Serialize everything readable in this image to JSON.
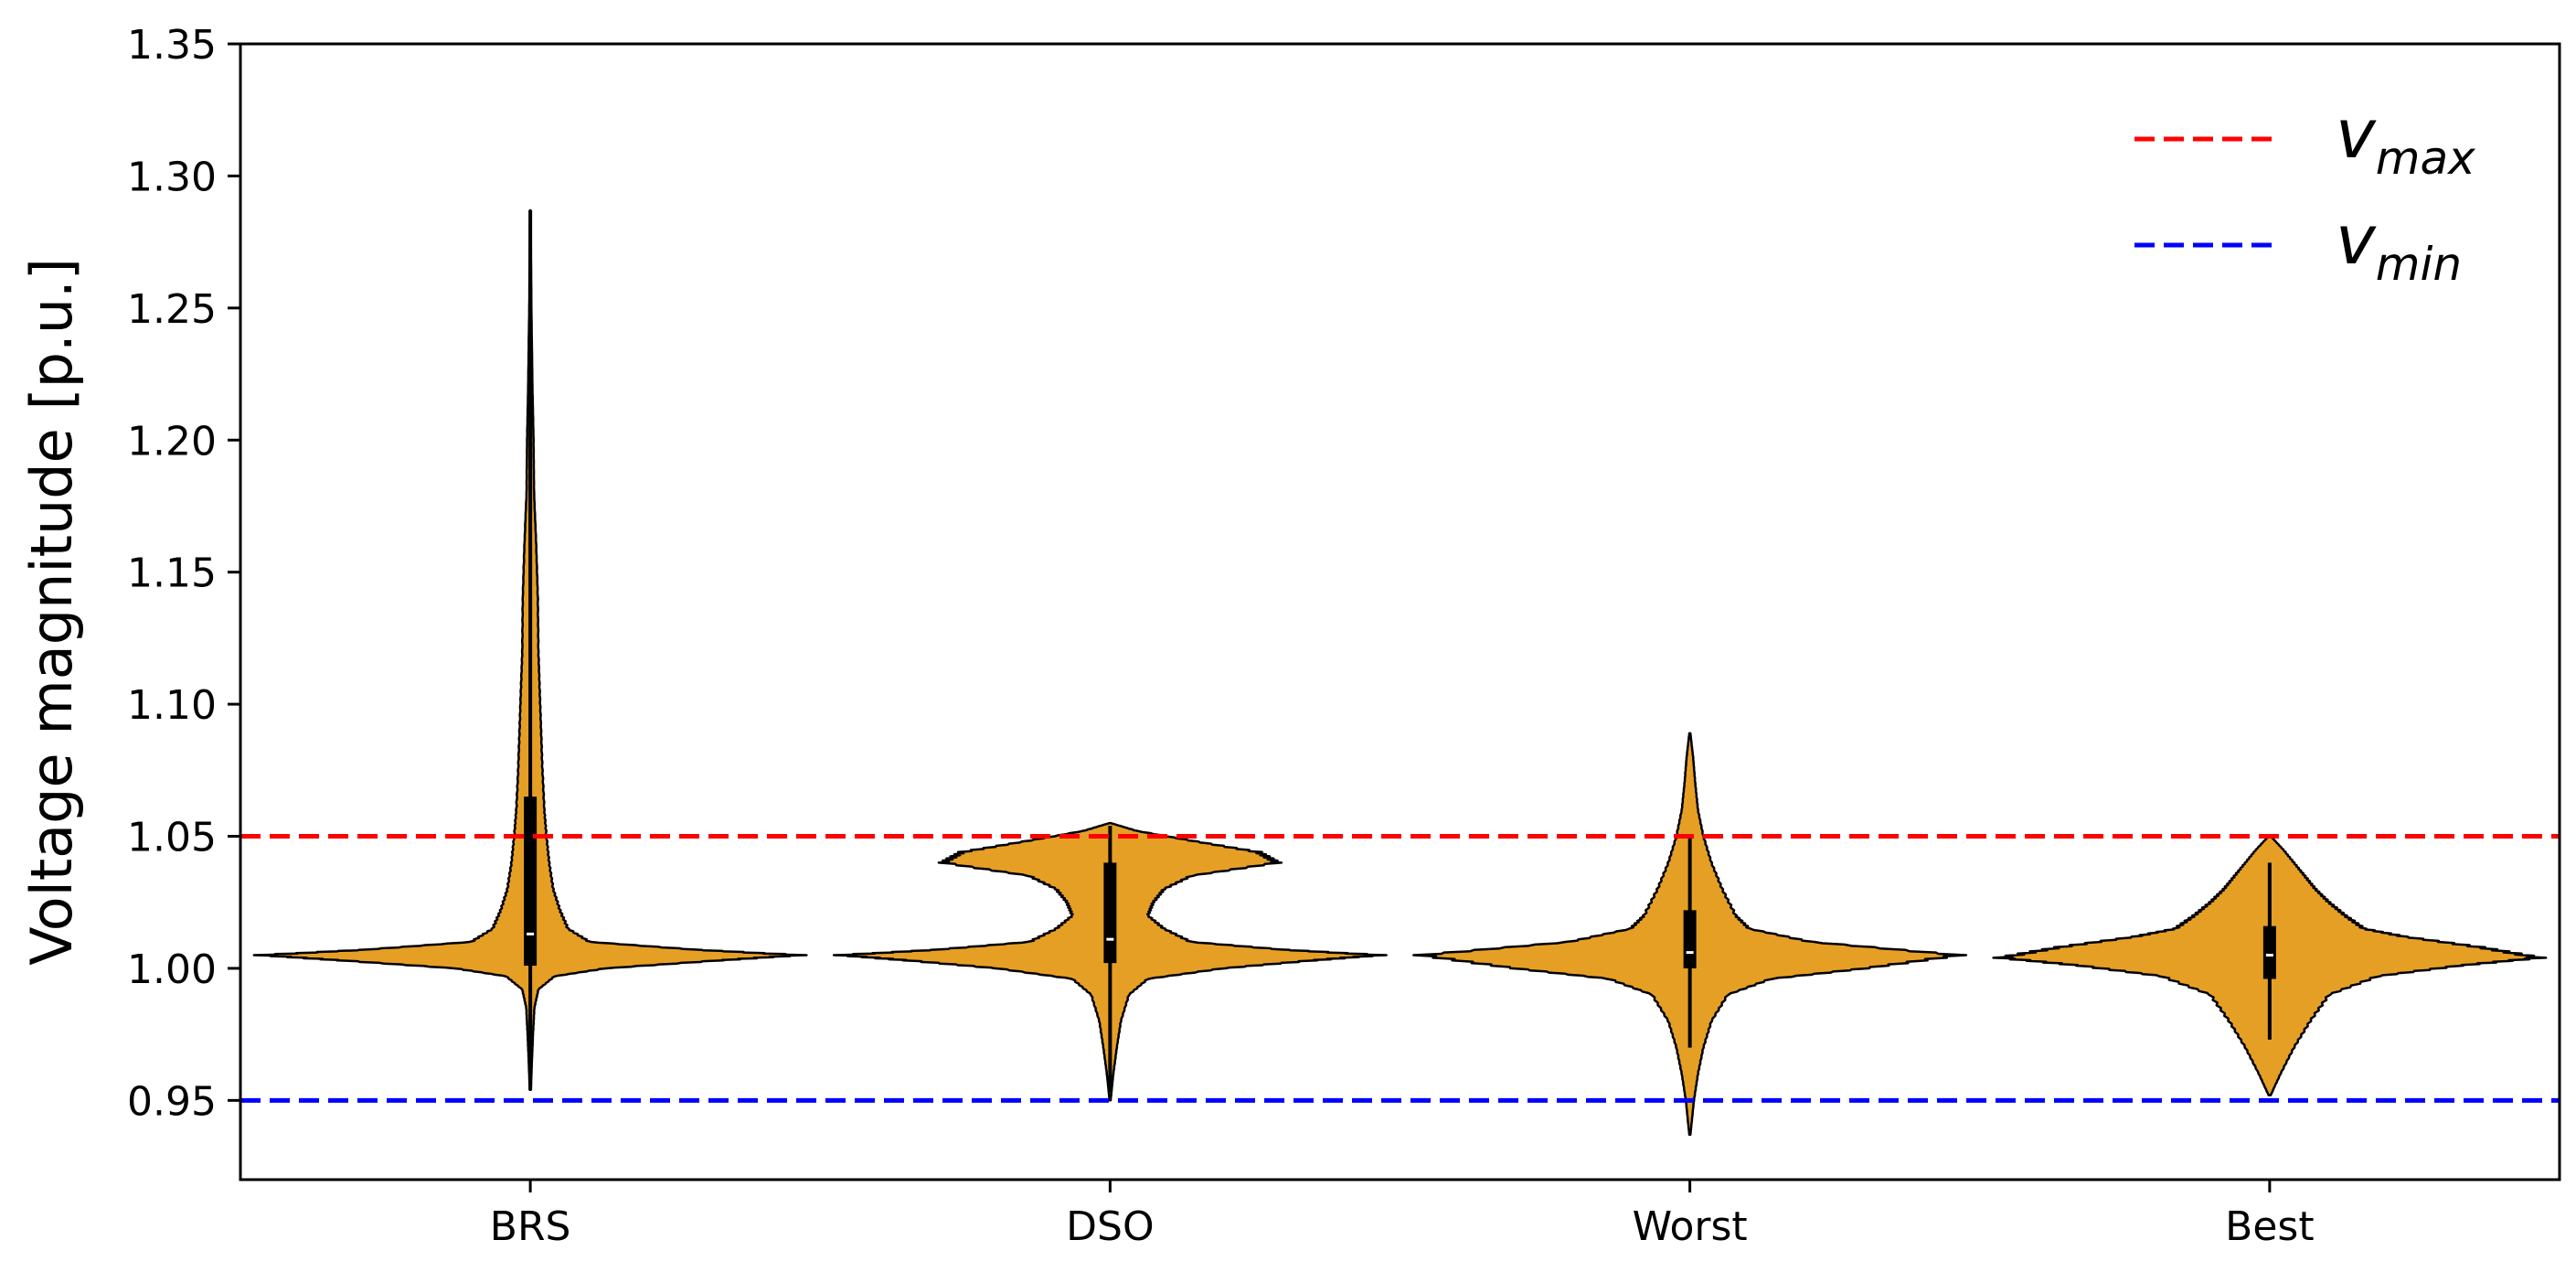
{
  "chart_data": {
    "type": "violin",
    "title": "",
    "xlabel": "",
    "ylabel": "Voltage magnitude [p.u.]",
    "ylim": [
      0.92,
      1.35
    ],
    "yticks": [
      "0.95",
      "1.00",
      "1.05",
      "1.10",
      "1.15",
      "1.20",
      "1.25",
      "1.30",
      "1.35"
    ],
    "categories": [
      "BRS",
      "DSO",
      "Worst",
      "Best"
    ],
    "fill_color": "#e69f25",
    "violins": [
      {
        "name": "BRS",
        "min": 0.954,
        "max": 1.287,
        "q1": 1.001,
        "median": 1.013,
        "q3": 1.065,
        "whisker_low": 0.954,
        "whisker_high": 1.287,
        "profile": [
          [
            0.954,
            0.002
          ],
          [
            0.965,
            0.006
          ],
          [
            0.975,
            0.01
          ],
          [
            0.985,
            0.015
          ],
          [
            0.992,
            0.03
          ],
          [
            0.997,
            0.09
          ],
          [
            1.0,
            0.28
          ],
          [
            1.003,
            0.7
          ],
          [
            1.005,
            1.0
          ],
          [
            1.007,
            0.62
          ],
          [
            1.01,
            0.22
          ],
          [
            1.015,
            0.14
          ],
          [
            1.022,
            0.11
          ],
          [
            1.03,
            0.085
          ],
          [
            1.04,
            0.07
          ],
          [
            1.05,
            0.06
          ],
          [
            1.06,
            0.052
          ],
          [
            1.075,
            0.045
          ],
          [
            1.09,
            0.04
          ],
          [
            1.105,
            0.035
          ],
          [
            1.12,
            0.03
          ],
          [
            1.14,
            0.028
          ],
          [
            1.16,
            0.022
          ],
          [
            1.18,
            0.014
          ],
          [
            1.2,
            0.012
          ],
          [
            1.22,
            0.008
          ],
          [
            1.25,
            0.004
          ],
          [
            1.287,
            0.001
          ]
        ]
      },
      {
        "name": "DSO",
        "min": 0.95,
        "max": 1.055,
        "q1": 1.002,
        "median": 1.011,
        "q3": 1.04,
        "whisker_low": 0.953,
        "whisker_high": 1.054,
        "profile": [
          [
            0.95,
            0.002
          ],
          [
            0.96,
            0.012
          ],
          [
            0.97,
            0.025
          ],
          [
            0.98,
            0.04
          ],
          [
            0.99,
            0.07
          ],
          [
            0.996,
            0.14
          ],
          [
            1.0,
            0.42
          ],
          [
            1.003,
            0.75
          ],
          [
            1.005,
            1.0
          ],
          [
            1.007,
            0.65
          ],
          [
            1.01,
            0.3
          ],
          [
            1.015,
            0.2
          ],
          [
            1.02,
            0.14
          ],
          [
            1.025,
            0.16
          ],
          [
            1.03,
            0.2
          ],
          [
            1.035,
            0.3
          ],
          [
            1.04,
            0.62
          ],
          [
            1.044,
            0.55
          ],
          [
            1.048,
            0.32
          ],
          [
            1.052,
            0.1
          ],
          [
            1.055,
            0.002
          ]
        ]
      },
      {
        "name": "Worst",
        "min": 0.937,
        "max": 1.089,
        "q1": 1.0,
        "median": 1.006,
        "q3": 1.022,
        "whisker_low": 0.97,
        "whisker_high": 1.05,
        "profile": [
          [
            0.937,
            0.002
          ],
          [
            0.95,
            0.015
          ],
          [
            0.96,
            0.03
          ],
          [
            0.97,
            0.05
          ],
          [
            0.98,
            0.08
          ],
          [
            0.99,
            0.14
          ],
          [
            0.996,
            0.3
          ],
          [
            1.0,
            0.65
          ],
          [
            1.005,
            1.0
          ],
          [
            1.01,
            0.45
          ],
          [
            1.015,
            0.22
          ],
          [
            1.02,
            0.17
          ],
          [
            1.03,
            0.12
          ],
          [
            1.04,
            0.08
          ],
          [
            1.05,
            0.05
          ],
          [
            1.06,
            0.03
          ],
          [
            1.07,
            0.02
          ],
          [
            1.08,
            0.012
          ],
          [
            1.089,
            0.002
          ]
        ]
      },
      {
        "name": "Best",
        "min": 0.952,
        "max": 1.05,
        "q1": 0.996,
        "median": 1.005,
        "q3": 1.016,
        "whisker_low": 0.973,
        "whisker_high": 1.04,
        "profile": [
          [
            0.952,
            0.004
          ],
          [
            0.96,
            0.04
          ],
          [
            0.97,
            0.09
          ],
          [
            0.98,
            0.15
          ],
          [
            0.99,
            0.22
          ],
          [
            0.997,
            0.4
          ],
          [
            1.001,
            0.7
          ],
          [
            1.004,
            1.0
          ],
          [
            1.008,
            0.78
          ],
          [
            1.012,
            0.5
          ],
          [
            1.015,
            0.35
          ],
          [
            1.02,
            0.28
          ],
          [
            1.025,
            0.22
          ],
          [
            1.03,
            0.17
          ],
          [
            1.035,
            0.13
          ],
          [
            1.04,
            0.09
          ],
          [
            1.045,
            0.05
          ],
          [
            1.05,
            0.004
          ]
        ]
      }
    ],
    "reference_lines": [
      {
        "name": "v_max",
        "value": 1.05,
        "color": "#ff0000",
        "style": "dashed"
      },
      {
        "name": "v_min",
        "value": 0.95,
        "color": "#0000ff",
        "style": "dashed"
      }
    ],
    "legend": {
      "placement": "top-right",
      "entries": [
        {
          "symbol": "v",
          "subscript": "max",
          "color": "#ff0000"
        },
        {
          "symbol": "v",
          "subscript": "min",
          "color": "#0000ff"
        }
      ]
    },
    "grid": false
  }
}
